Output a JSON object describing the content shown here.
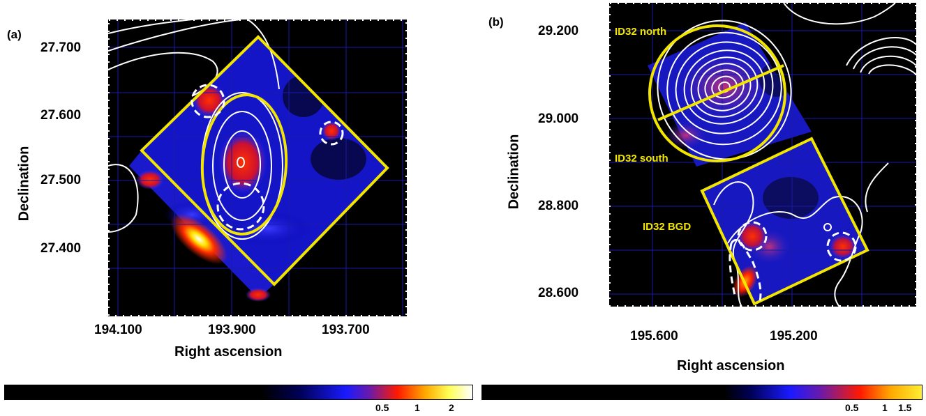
{
  "panel_a": {
    "letter": "(a)",
    "x_axis_title": "Right ascension",
    "y_axis_title": "Declination",
    "x_ticks": [
      "194.100",
      "193.900",
      "193.700"
    ],
    "y_ticks": [
      "27.700",
      "27.600",
      "27.500",
      "27.400"
    ],
    "colorbar_ticks": [
      "0.5",
      "1",
      "2"
    ]
  },
  "panel_b": {
    "letter": "(b)",
    "x_axis_title": "Right ascension",
    "y_axis_title": "Declination",
    "x_ticks": [
      "195.600",
      "195.200"
    ],
    "y_ticks": [
      "29.200",
      "29.000",
      "28.800",
      "28.600"
    ],
    "colorbar_ticks": [
      "0.5",
      "1",
      "1.5"
    ],
    "region_labels": {
      "north": "ID32 north",
      "south": "ID32 south",
      "bgd": "ID32 BGD"
    }
  },
  "colors": {
    "contour": "#ffffff",
    "region": "#f2e600",
    "grid": "#1a1aaa",
    "background": "#000000"
  }
}
